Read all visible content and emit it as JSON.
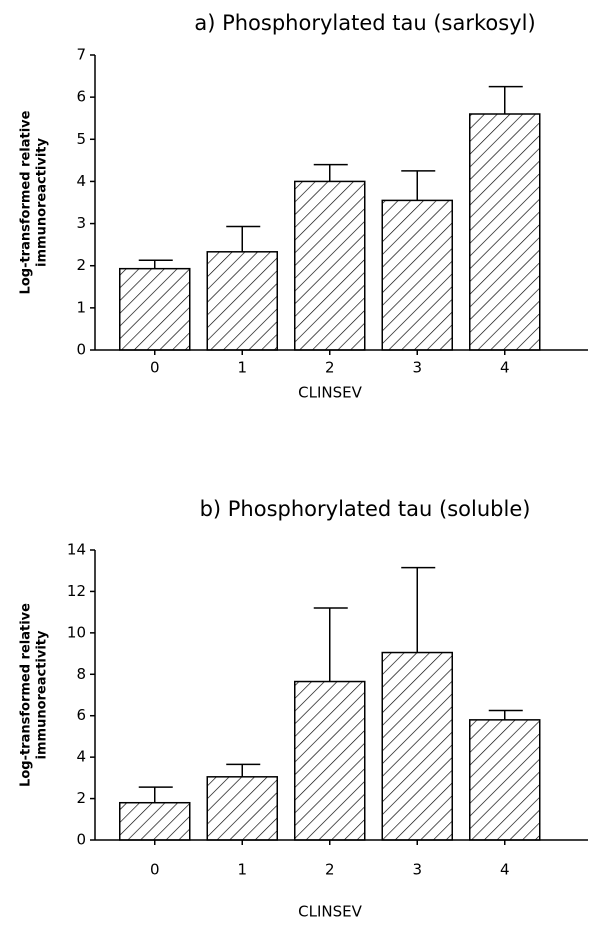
{
  "chart_data": [
    {
      "type": "bar",
      "title": "a) Phosphorylated tau (sarkosyl)",
      "xlabel": "CLINSEV",
      "ylabel": [
        "Log-transformed relative",
        "immunoreactivity"
      ],
      "categories": [
        "0",
        "1",
        "2",
        "3",
        "4"
      ],
      "values": [
        1.93,
        2.33,
        4.0,
        3.55,
        5.6
      ],
      "errors": [
        0.2,
        0.6,
        0.4,
        0.7,
        0.65
      ],
      "color": "#000000",
      "hatch": true,
      "ylim": [
        0,
        7
      ],
      "yticks": [
        0,
        1,
        2,
        3,
        4,
        5,
        6,
        7
      ]
    },
    {
      "type": "bar",
      "title": "b) Phosphorylated tau (soluble)",
      "xlabel": "CLINSEV",
      "ylabel": [
        "Log-transformed relative",
        "immunoreactivity"
      ],
      "categories": [
        "0",
        "1",
        "2",
        "3",
        "4"
      ],
      "values": [
        1.8,
        3.05,
        7.65,
        9.05,
        5.8
      ],
      "errors": [
        0.75,
        0.6,
        3.55,
        4.1,
        0.45
      ],
      "color": "#000000",
      "hatch": true,
      "ylim": [
        0,
        14
      ],
      "yticks": [
        0,
        2,
        4,
        6,
        8,
        10,
        12,
        14
      ]
    }
  ]
}
